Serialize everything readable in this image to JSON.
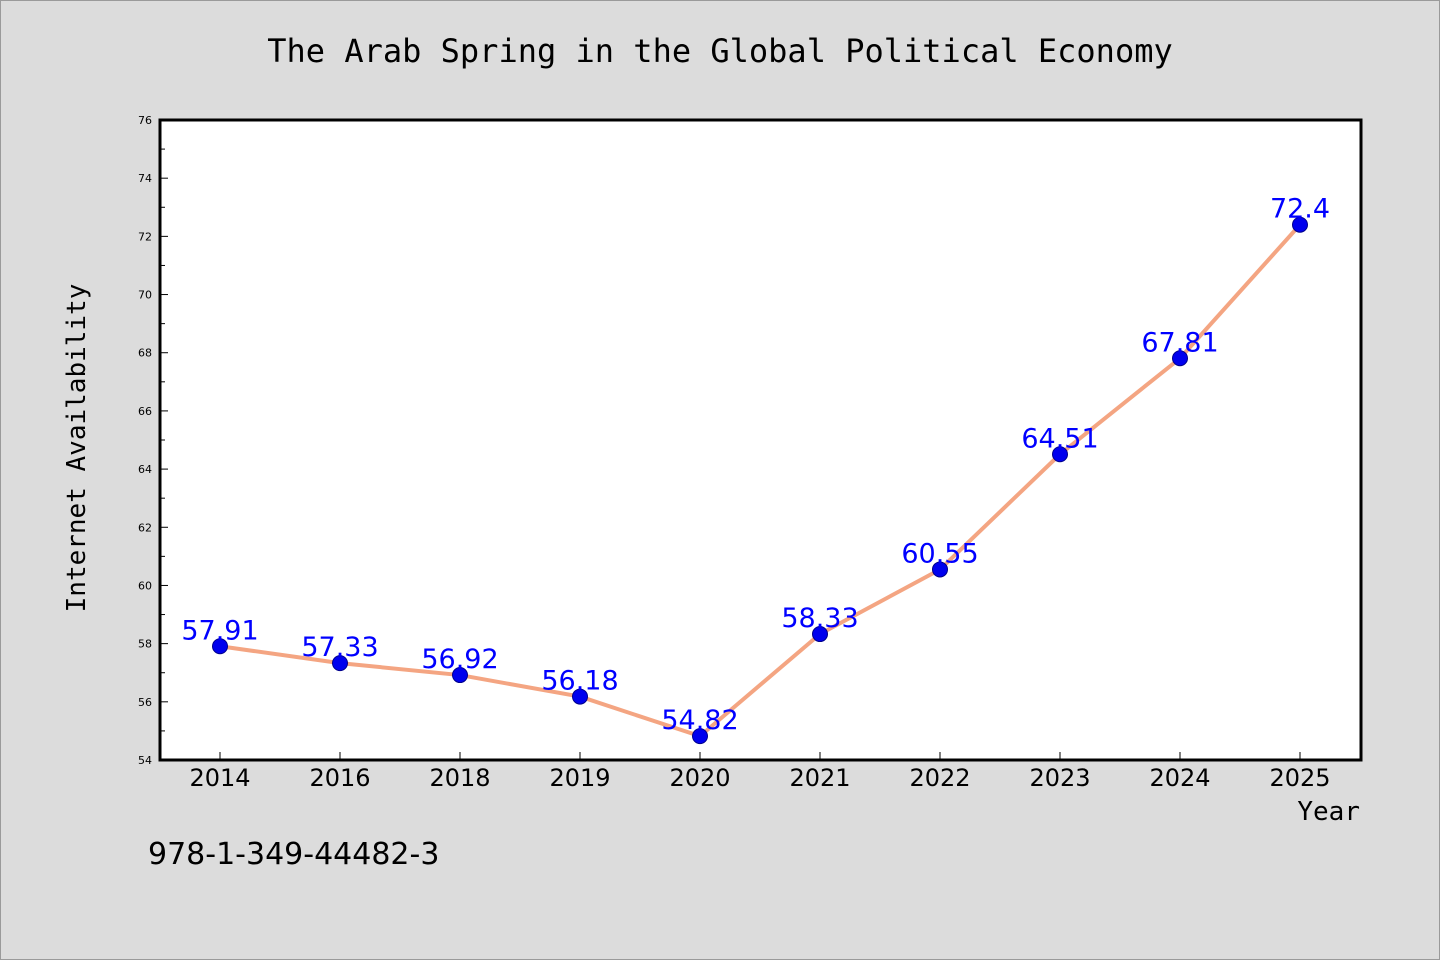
{
  "chart_data": {
    "type": "line",
    "title": "The Arab Spring in the Global Political Economy",
    "xlabel": "Year",
    "ylabel": "Internet Availability",
    "categories": [
      "2014",
      "2016",
      "2018",
      "2019",
      "2020",
      "2021",
      "2022",
      "2023",
      "2024",
      "2025"
    ],
    "series": [
      {
        "values": [
          57.91,
          57.33,
          56.92,
          56.18,
          54.82,
          58.33,
          60.55,
          64.51,
          67.81,
          72.4
        ],
        "labels": [
          "57.91",
          "57.33",
          "56.92",
          "56.18",
          "54.82",
          "58.33",
          "60.55",
          "64.51",
          "67.81",
          "72.4"
        ]
      }
    ],
    "ylim": [
      54,
      76
    ],
    "yticks": [
      "54",
      "56",
      "58",
      "60",
      "62",
      "64",
      "66",
      "68",
      "70",
      "72",
      "74",
      "76"
    ],
    "grid": false,
    "legend": "none",
    "colors": {
      "line": "#f4a582",
      "marker": "#0000ee",
      "data_label": "#0000ff",
      "background": "#dcdcdc",
      "plot_background": "#ffffff"
    }
  },
  "footnote": "978-1-349-44482-3"
}
